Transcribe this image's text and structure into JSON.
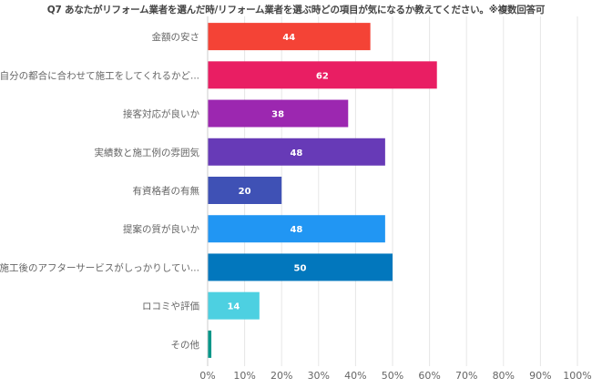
{
  "chart_data": {
    "type": "bar",
    "orientation": "horizontal",
    "title": "Q7 あなたがリフォーム業者を選んだ時/リフォーム業者を選ぶ時どの項目が気になるか教えてください。※複数回答可",
    "xlabel": "",
    "ylabel": "",
    "xlim": [
      0,
      100
    ],
    "grid": true,
    "categories": [
      "金額の安さ",
      "自分の都合に合わせて施工をしてくれるかど...",
      "接客対応が良いか",
      "実績数と施工例の雰囲気",
      "有資格者の有無",
      "提案の質が良いか",
      "施工後のアフターサービスがしっかりしてい...",
      "ロコミや評価",
      "その他"
    ],
    "values": [
      44,
      62,
      38,
      48,
      20,
      48,
      50,
      14,
      1
    ],
    "value_labels": [
      "44",
      "62",
      "38",
      "48",
      "20",
      "48",
      "50",
      "14",
      ""
    ],
    "colors": [
      "#F44336",
      "#E91E63",
      "#9C27B0",
      "#673AB7",
      "#3F51B5",
      "#2196F3",
      "#0277BD",
      "#4DD0E1",
      "#009688"
    ],
    "ticks": [
      0,
      10,
      20,
      30,
      40,
      50,
      60,
      70,
      80,
      90,
      100
    ],
    "tick_labels": [
      "0%",
      "10%",
      "20%",
      "30%",
      "40%",
      "50%",
      "60%",
      "70%",
      "80%",
      "90%",
      "100%"
    ]
  }
}
